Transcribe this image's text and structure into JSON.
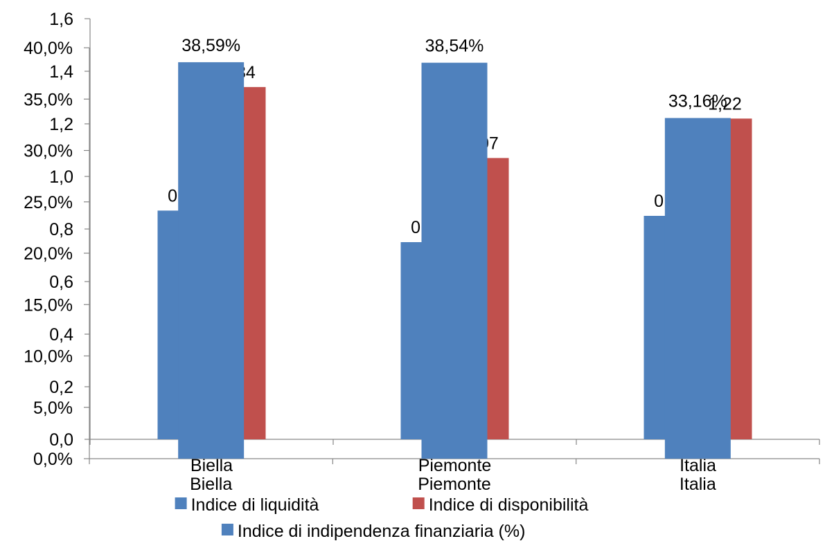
{
  "chart_data": [
    {
      "type": "bar",
      "categories": [
        "Biella",
        "Piemonte",
        "Italia"
      ],
      "series": [
        {
          "name": "Indice di liquidità",
          "color": "#4F81BD",
          "values": [
            0.87,
            0.75,
            0.85
          ],
          "labels": [
            "0,87",
            "0,75",
            "0,85"
          ]
        },
        {
          "name": "Indice di disponibilità",
          "color": "#C0504D",
          "values": [
            1.34,
            1.07,
            1.22
          ],
          "labels": [
            "1,34",
            "1,07",
            "1,22"
          ]
        }
      ],
      "ylim": [
        0,
        1.6
      ],
      "yticks": [
        "0,0",
        "0,2",
        "0,4",
        "0,6",
        "0,8",
        "1,0",
        "1,2",
        "1,4",
        "1,6"
      ],
      "grid": false
    },
    {
      "type": "bar",
      "categories": [
        "Biella",
        "Piemonte",
        "Italia"
      ],
      "series": [
        {
          "name": "Indice di indipendenza finanziaria (%)",
          "color": "#4F81BD",
          "values": [
            38.59,
            38.54,
            33.16
          ],
          "labels": [
            "38,59%",
            "38,54%",
            "33,16%"
          ]
        }
      ],
      "ylim": [
        0,
        40
      ],
      "yticks": [
        "0,0%",
        "5,0%",
        "10,0%",
        "15,0%",
        "20,0%",
        "25,0%",
        "30,0%",
        "35,0%",
        "40,0%"
      ],
      "grid": false
    }
  ],
  "legend": {
    "placement": "bottom",
    "items": [
      {
        "label": "Indice di liquidità",
        "color": "#4F81BD"
      },
      {
        "label": "Indice di disponibilità",
        "color": "#C0504D"
      },
      {
        "label": "Indice di indipendenza finanziaria (%)",
        "color": "#4F81BD"
      }
    ]
  }
}
